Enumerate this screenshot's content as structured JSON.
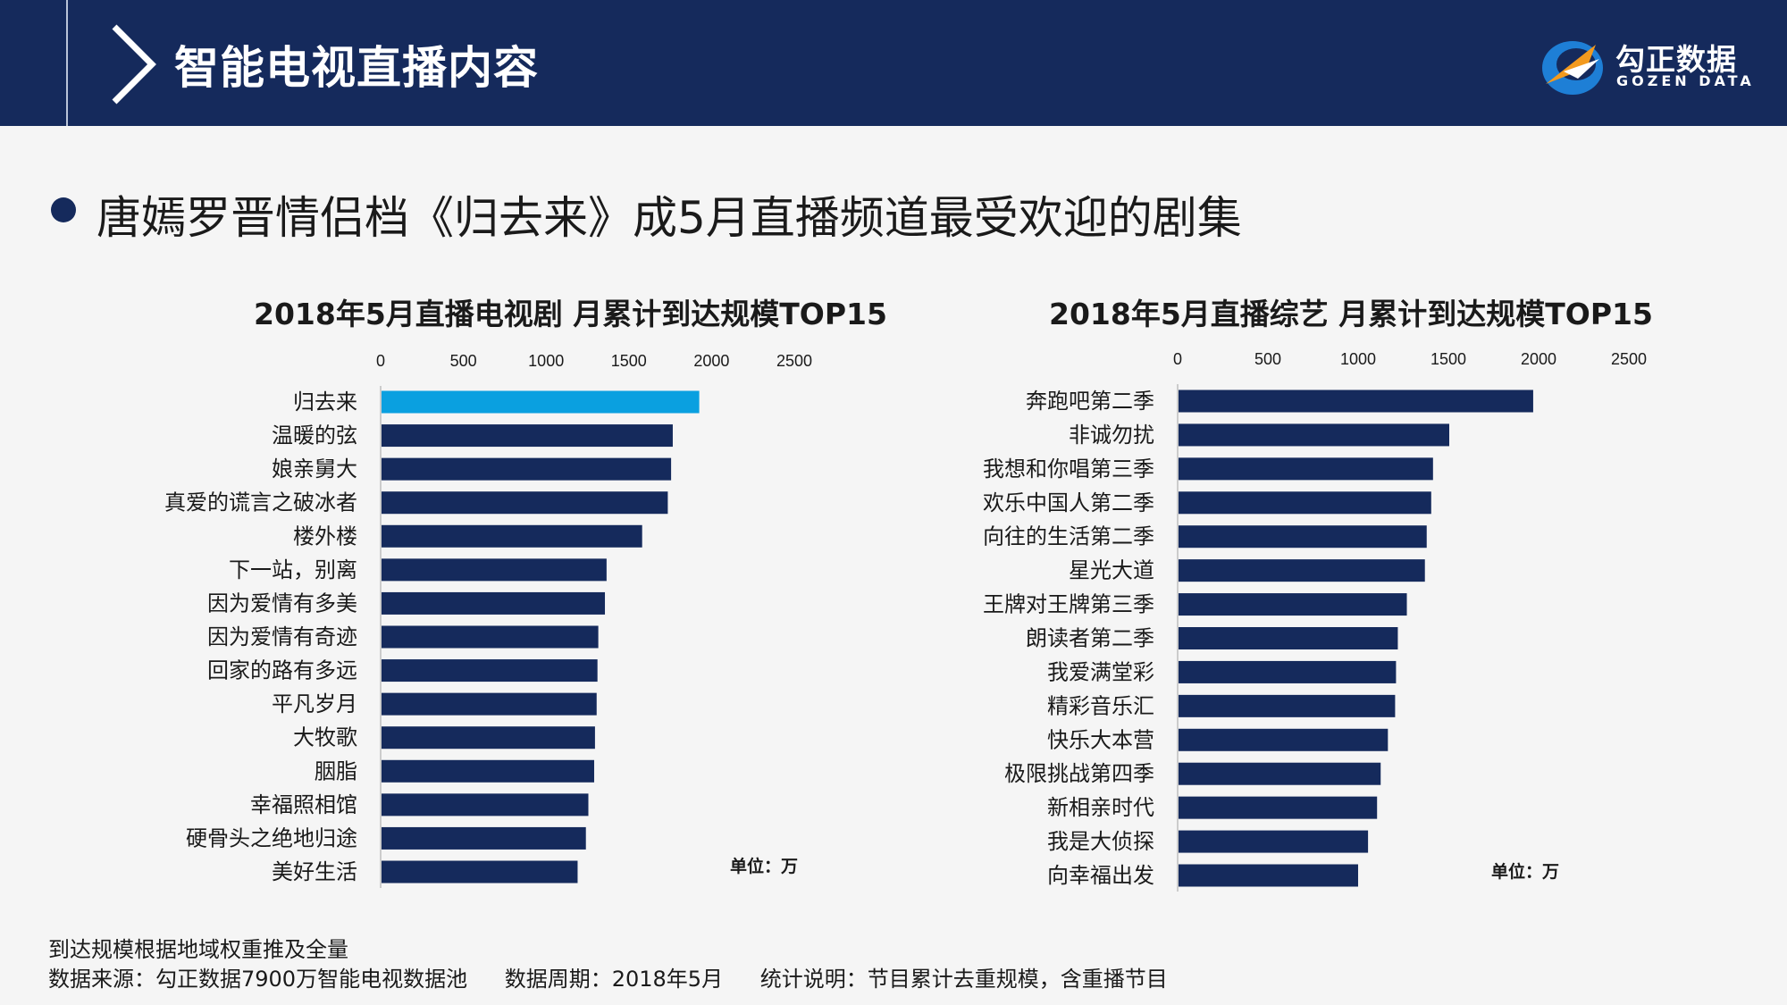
{
  "header": {
    "title": "智能电视直播内容",
    "logo_cn": "勾正数据",
    "logo_en": "GOZEN DATA"
  },
  "headline": "唐嫣罗晋情侣档《归去来》成5月直播频道最受欢迎的剧集",
  "colors": {
    "header_bg": "#152a5c",
    "bar": "#152a5c",
    "bar_highlight": "#0aa0e0",
    "logo_blue": "#1e7fd6",
    "logo_orange": "#f39a1e"
  },
  "chart_data": [
    {
      "type": "bar",
      "orientation": "horizontal",
      "title": "2018年5月直播电视剧 月累计到达规模TOP15",
      "unit_label": "单位：万",
      "xlim": [
        0,
        2500
      ],
      "ticks": [
        "0",
        "500",
        "1000",
        "1500",
        "2000",
        "2500"
      ],
      "categories": [
        "归去来",
        "温暖的弦",
        "娘亲舅大",
        "真爱的谎言之破冰者",
        "楼外楼",
        "下一站，别离",
        "因为爱情有多美",
        "因为爱情有奇迹",
        "回家的路有多远",
        "平凡岁月",
        "大牧歌",
        "胭脂",
        "幸福照相馆",
        "硬骨头之绝地归途",
        "美好生活"
      ],
      "values": [
        1920,
        1760,
        1750,
        1730,
        1575,
        1360,
        1350,
        1310,
        1305,
        1300,
        1290,
        1285,
        1250,
        1235,
        1185
      ],
      "highlight_index": 0
    },
    {
      "type": "bar",
      "orientation": "horizontal",
      "title": "2018年5月直播综艺 月累计到达规模TOP15",
      "unit_label": "单位：万",
      "xlim": [
        0,
        2500
      ],
      "ticks": [
        "0",
        "500",
        "1000",
        "1500",
        "2000",
        "2500"
      ],
      "categories": [
        "奔跑吧第二季",
        "非诚勿扰",
        "我想和你唱第三季",
        "欢乐中国人第二季",
        "向往的生活第二季",
        "星光大道",
        "王牌对王牌第三季",
        "朗读者第二季",
        "我爱满堂彩",
        "精彩音乐汇",
        "快乐大本营",
        "极限挑战第四季",
        "新相亲时代",
        "我是大侦探",
        "向幸福出发"
      ],
      "values": [
        1965,
        1500,
        1410,
        1400,
        1375,
        1365,
        1265,
        1215,
        1205,
        1200,
        1160,
        1120,
        1100,
        1050,
        995
      ],
      "highlight_index": -1
    }
  ],
  "footnotes": {
    "line1": "到达规模根据地域权重推及全量",
    "source": "数据来源：勾正数据7900万智能电视数据池",
    "period": "数据周期：2018年5月",
    "stat": "统计说明：节目累计去重规模，含重播节目"
  }
}
